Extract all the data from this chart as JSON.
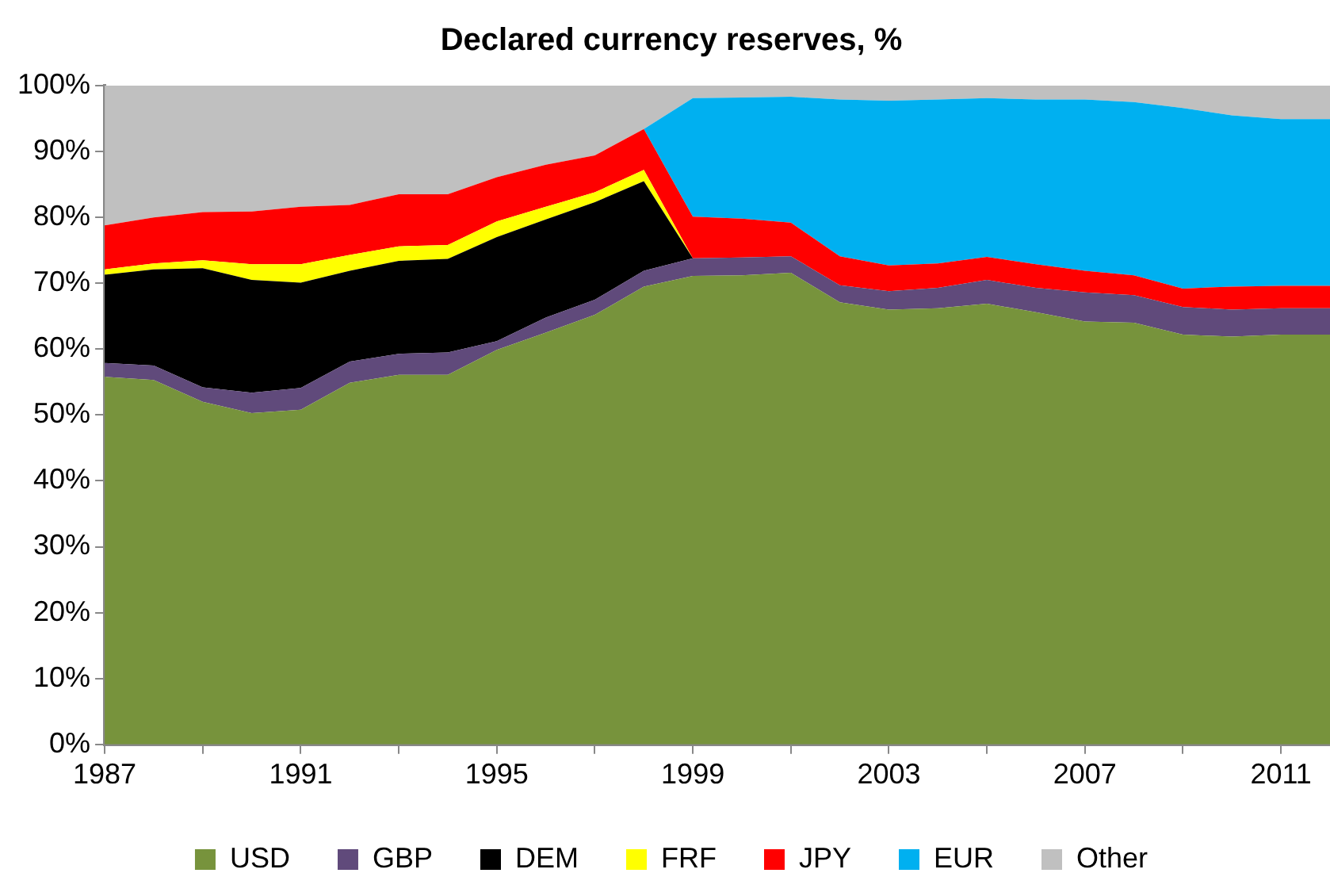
{
  "chart_data": {
    "type": "area",
    "stacked": true,
    "title": "Declared currency reserves, %",
    "x": [
      1987,
      1988,
      1989,
      1990,
      1991,
      1992,
      1993,
      1994,
      1995,
      1996,
      1997,
      1998,
      1999,
      2000,
      2001,
      2002,
      2003,
      2004,
      2005,
      2006,
      2007,
      2008,
      2009,
      2010,
      2011,
      2012
    ],
    "xlim": [
      1987,
      2012
    ],
    "xticks": [
      1987,
      {
        "value": 1989,
        "label": null
      },
      1991,
      {
        "value": 1993,
        "label": null
      },
      1995,
      {
        "value": 1997,
        "label": null
      },
      1999,
      {
        "value": 2001,
        "label": null
      },
      2003,
      {
        "value": 2005,
        "label": null
      },
      2007,
      {
        "value": 2009,
        "label": null
      },
      2011
    ],
    "ylim": [
      0,
      100
    ],
    "yticks": [
      {
        "value": 0,
        "label": "0%"
      },
      {
        "value": 10,
        "label": "10%"
      },
      {
        "value": 20,
        "label": "20%"
      },
      {
        "value": 30,
        "label": "30%"
      },
      {
        "value": 40,
        "label": "40%"
      },
      {
        "value": 50,
        "label": "50%"
      },
      {
        "value": 60,
        "label": "60%"
      },
      {
        "value": 70,
        "label": "70%"
      },
      {
        "value": 80,
        "label": "80%"
      },
      {
        "value": 90,
        "label": "90%"
      },
      {
        "value": 100,
        "label": "100%"
      }
    ],
    "grid": false,
    "legend": "bottom",
    "series": [
      {
        "name": "USD",
        "color": "#77933c",
        "values": [
          55.8,
          55.3,
          52.0,
          50.3,
          50.8,
          54.9,
          56.1,
          56.1,
          59.9,
          62.5,
          65.2,
          69.5,
          71.1,
          71.2,
          71.6,
          67.1,
          66.0,
          66.2,
          66.9,
          65.6,
          64.2,
          64.0,
          62.2,
          61.9,
          62.2,
          62.2
        ]
      },
      {
        "name": "GBP",
        "color": "#604a7b",
        "values": [
          2.1,
          2.2,
          2.2,
          3.1,
          3.3,
          3.2,
          3.2,
          3.4,
          1.3,
          2.3,
          2.3,
          2.4,
          2.7,
          2.7,
          2.5,
          2.6,
          2.8,
          3.1,
          3.6,
          3.7,
          4.4,
          4.2,
          4.2,
          4.1,
          4.0,
          4.0
        ]
      },
      {
        "name": "DEM",
        "color": "#000000",
        "values": [
          13.4,
          14.6,
          18.1,
          17.1,
          16.0,
          13.8,
          14.1,
          14.2,
          15.8,
          14.9,
          14.8,
          13.6,
          0,
          0,
          0,
          0,
          0,
          0,
          0,
          0,
          0,
          0,
          0,
          0,
          0,
          0
        ]
      },
      {
        "name": "FRF",
        "color": "#ffff00",
        "values": [
          0.8,
          0.9,
          1.2,
          2.4,
          2.8,
          2.4,
          2.2,
          2.1,
          2.4,
          1.9,
          1.5,
          1.7,
          0,
          0,
          0,
          0,
          0,
          0,
          0,
          0,
          0,
          0,
          0,
          0,
          0,
          0
        ]
      },
      {
        "name": "JPY",
        "color": "#ff0000",
        "values": [
          6.7,
          7.0,
          7.3,
          8.0,
          8.7,
          7.6,
          7.9,
          7.7,
          6.7,
          6.4,
          5.6,
          6.2,
          6.3,
          5.9,
          5.1,
          4.4,
          3.9,
          3.7,
          3.5,
          3.6,
          3.3,
          3.0,
          2.8,
          3.5,
          3.4,
          3.4
        ]
      },
      {
        "name": "EUR",
        "color": "#00b0f0",
        "values": [
          0,
          0,
          0,
          0,
          0,
          0,
          0,
          0,
          0,
          0,
          0,
          0,
          18.0,
          18.4,
          19.1,
          23.8,
          25.0,
          24.9,
          24.1,
          25.0,
          26.0,
          26.3,
          27.4,
          26.0,
          25.3,
          25.3
        ]
      },
      {
        "name": "Other",
        "color": "#c0c0c0",
        "values": [
          21.2,
          20.0,
          19.2,
          19.1,
          18.4,
          18.1,
          16.5,
          16.5,
          13.9,
          12.0,
          10.6,
          6.6,
          1.9,
          1.8,
          1.7,
          2.1,
          2.3,
          2.1,
          1.9,
          2.1,
          2.1,
          2.5,
          3.4,
          4.5,
          5.1,
          5.1
        ]
      }
    ]
  }
}
